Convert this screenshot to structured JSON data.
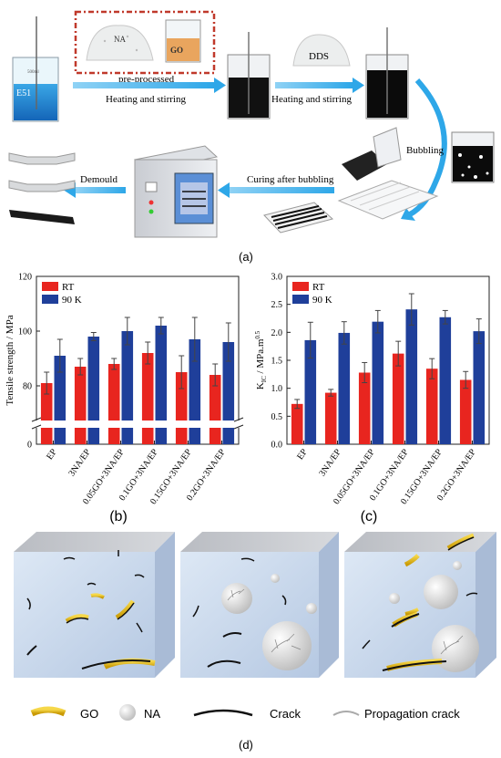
{
  "panel_a": {
    "label": "(a)",
    "beaker1_label": "E51",
    "beaker_vol": "500ml",
    "pre_label": "pre-processed",
    "na_label": "NA",
    "go_label": "GO",
    "step1": "Heating and stirring",
    "dds_label": "DDS",
    "step2": "Heating and stirring",
    "bubbling": "Bubbling",
    "curing": "Curing after bubbling",
    "demould": "Demould"
  },
  "panel_b": {
    "label": "(b)",
    "chart_data": {
      "type": "bar",
      "ylabel": "Tensile strength / MPa",
      "categories": [
        "EP",
        "3NA/EP",
        "0.05GO+3NA/EP",
        "0.1GO+3NA/EP",
        "0.15GO+3NA/EP",
        "0.2GO+3NA/EP"
      ],
      "yticks": [
        "0",
        "80",
        "100",
        "120"
      ],
      "ylim_upper": [
        70,
        120
      ],
      "legend_position": "top-left",
      "series": [
        {
          "name": "RT",
          "color": "#e8251f",
          "values": [
            81,
            87,
            88,
            92,
            85,
            84
          ],
          "errors": [
            4,
            3,
            2,
            4,
            6,
            4
          ]
        },
        {
          "name": "90 K",
          "color": "#1f3f9a",
          "values": [
            91,
            98,
            100,
            102,
            97,
            96
          ],
          "errors": [
            6,
            1.5,
            5,
            3,
            8,
            7
          ]
        }
      ]
    }
  },
  "panel_c": {
    "label": "(c)",
    "chart_data": {
      "type": "bar",
      "ylabel": "K_IC / MPa.m^0.5",
      "categories": [
        "EP",
        "3NA/EP",
        "0.05GO+3NA/EP",
        "0.1GO+3NA/EP",
        "0.15GO+3NA/EP",
        "0.2GO+3NA/EP"
      ],
      "yticks": [
        "0.0",
        "0.5",
        "1.0",
        "1.5",
        "2.0",
        "2.5",
        "3.0"
      ],
      "ylim": [
        0,
        3.0
      ],
      "legend_position": "top-left",
      "series": [
        {
          "name": "RT",
          "color": "#e8251f",
          "values": [
            0.72,
            0.92,
            1.28,
            1.62,
            1.35,
            1.15
          ],
          "errors": [
            0.08,
            0.06,
            0.18,
            0.22,
            0.18,
            0.15
          ]
        },
        {
          "name": "90 K",
          "color": "#1f3f9a",
          "values": [
            1.86,
            1.99,
            2.19,
            2.41,
            2.27,
            2.02
          ],
          "errors": [
            0.32,
            0.2,
            0.2,
            0.28,
            0.12,
            0.22
          ]
        }
      ]
    }
  },
  "panel_d": {
    "label": "(d)",
    "legend": {
      "go": "GO",
      "na": "NA",
      "crack": "Crack",
      "propagation": "Propagation crack"
    }
  },
  "colors": {
    "arrow": "#2ea7e8",
    "rt": "#e8251f",
    "k90": "#1f3f9a",
    "crack": "#111111",
    "go": "#f2c316",
    "cube": "#c8d8ec"
  }
}
